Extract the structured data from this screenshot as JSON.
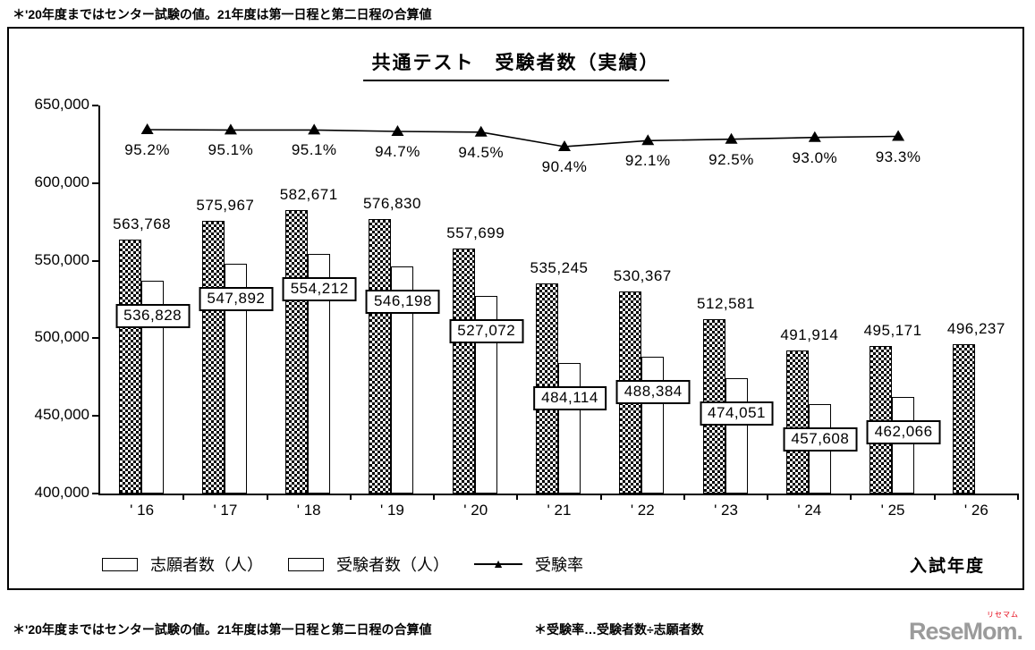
{
  "top_note": "＊'20年度まではセンター試験の値。21年度は第一日程と第二日程の合算値",
  "chart_data": {
    "type": "bar+line combo",
    "title": "共通テスト　受験者数（実績）",
    "categories": [
      "' 16",
      "' 17",
      "' 18",
      "' 19",
      "' 20",
      "' 21",
      "' 22",
      "' 23",
      "' 24",
      "' 25",
      "' 26"
    ],
    "series": [
      {
        "name": "志願者数（人）",
        "type": "bar",
        "pattern": "checker",
        "values": [
          563768,
          575967,
          582671,
          576830,
          557699,
          535245,
          530367,
          512581,
          491914,
          495171,
          496237
        ]
      },
      {
        "name": "受験者数（人）",
        "type": "bar",
        "pattern": "white",
        "values": [
          536828,
          547892,
          554212,
          546198,
          527072,
          484114,
          488384,
          474051,
          457608,
          462066,
          null
        ]
      },
      {
        "name": "受験率",
        "type": "line",
        "marker": "triangle",
        "unit": "%",
        "values": [
          95.2,
          95.1,
          95.1,
          94.7,
          94.5,
          90.4,
          92.1,
          92.5,
          93.0,
          93.3,
          null
        ]
      }
    ],
    "ylim": [
      400000,
      650000
    ],
    "ytick_step": 50000,
    "yticks": [
      "650,000",
      "600,000",
      "550,000",
      "500,000",
      "450,000",
      "400,000"
    ],
    "xlabel": "入試年度",
    "grid": false,
    "legend_position": "bottom-left"
  },
  "bottom_notes": {
    "left": "＊'20年度まではセンター試験の値。21年度は第一日程と第二日程の合算値",
    "right": "＊受験率…受験者数÷志願者数"
  },
  "logo": {
    "text": "ReseMom.",
    "kana": "リセマム"
  }
}
